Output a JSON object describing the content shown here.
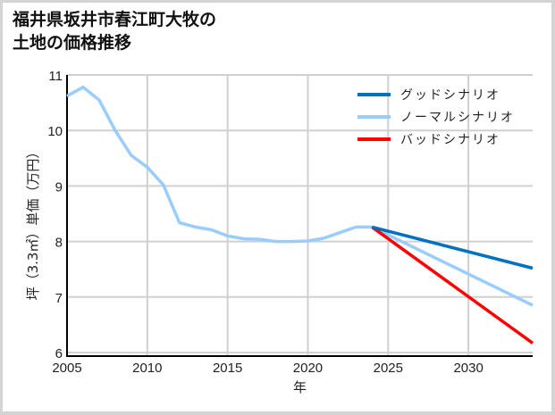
{
  "title_line1": "福井県坂井市春江町大牧の",
  "title_line2": "土地の価格推移",
  "chart_data": {
    "type": "line",
    "title": "福井県坂井市春江町大牧の土地の価格推移",
    "xlabel": "年",
    "ylabel": "坪（3.3㎡）単価（万円）",
    "xlim": [
      2005,
      2034
    ],
    "ylim": [
      6,
      11
    ],
    "x_ticks": [
      "2005",
      "2010",
      "2015",
      "2020",
      "2025",
      "2030"
    ],
    "y_ticks": [
      "6",
      "7",
      "8",
      "9",
      "10",
      "11"
    ],
    "grid": true,
    "legend_position": "upper right",
    "series": [
      {
        "name": "グッドシナリオ",
        "color": "#0070c0",
        "x": [
          2024,
          2034
        ],
        "values": [
          8.26,
          7.52
        ]
      },
      {
        "name": "ノーマルシナリオ",
        "color": "#99ccff",
        "x": [
          2005,
          2006,
          2007,
          2008,
          2009,
          2010,
          2011,
          2012,
          2013,
          2014,
          2015,
          2016,
          2017,
          2018,
          2019,
          2020,
          2021,
          2022,
          2023,
          2024,
          2034
        ],
        "values": [
          10.62,
          10.78,
          10.55,
          10.0,
          9.55,
          9.34,
          9.02,
          8.34,
          8.26,
          8.21,
          8.1,
          8.05,
          8.04,
          8.0,
          8.0,
          8.01,
          8.06,
          8.16,
          8.26,
          8.26,
          6.85
        ]
      },
      {
        "name": "バッドシナリオ",
        "color": "#ff0000",
        "x": [
          2024,
          2034
        ],
        "values": [
          8.26,
          6.17
        ]
      }
    ]
  }
}
